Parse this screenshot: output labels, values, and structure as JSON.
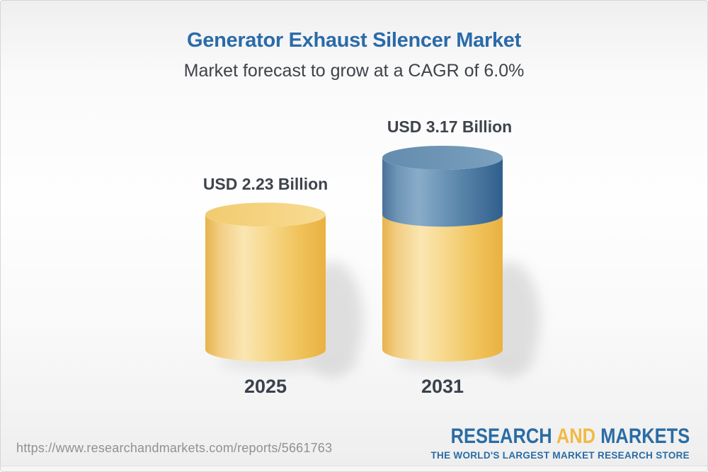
{
  "header": {
    "title": "Generator Exhaust Silencer Market",
    "subtitle": "Market forecast to grow at a CAGR of 6.0%"
  },
  "chart_data": {
    "type": "bar",
    "variant": "3d-cylinder",
    "categories": [
      "2025",
      "2031"
    ],
    "values": [
      2.23,
      3.17
    ],
    "value_labels": [
      "USD 2.23 Billion",
      "USD 3.17 Billion"
    ],
    "unit": "USD Billion",
    "title": "Generator Exhaust Silencer Market",
    "subtitle": "Market forecast to grow at a CAGR of 6.0%",
    "cagr": "6.0%",
    "legend_position": "none",
    "grid": false,
    "base_color": "#F2C96B",
    "growth_color": "#4E7BA6"
  },
  "footer": {
    "url": "https://www.researchandmarkets.com/reports/5661763",
    "logo": {
      "part1": "RESEARCH",
      "part2": "AND",
      "part3": "MARKETS",
      "tagline": "THE WORLD'S LARGEST MARKET RESEARCH STORE"
    }
  },
  "colors": {
    "title_blue": "#2A6BA8",
    "text_dark": "#3F444B",
    "url_gray": "#8F9193",
    "logo_blue": "#2A6CA5",
    "logo_yellow": "#F1BA45"
  }
}
